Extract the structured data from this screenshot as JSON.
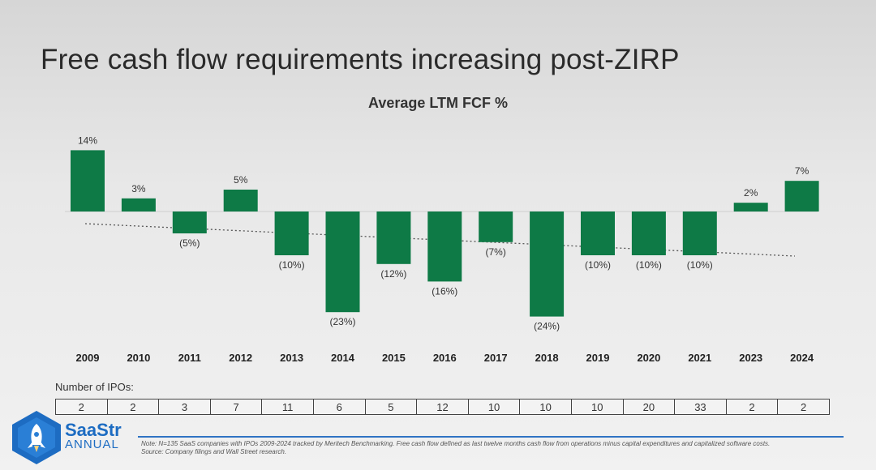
{
  "slide": {
    "title": "Free cash flow requirements increasing post-ZIRP"
  },
  "chart_data": {
    "type": "bar",
    "title": "Average LTM FCF %",
    "categories": [
      "2009",
      "2010",
      "2011",
      "2012",
      "2013",
      "2014",
      "2015",
      "2016",
      "2017",
      "2018",
      "2019",
      "2020",
      "2021",
      "2023",
      "2024"
    ],
    "values": [
      14,
      3,
      -5,
      5,
      -10,
      -23,
      -12,
      -16,
      -7,
      -24,
      -10,
      -10,
      -10,
      2,
      7
    ],
    "value_labels": [
      "14%",
      "3%",
      "(5%)",
      "5%",
      "(10%)",
      "(23%)",
      "(12%)",
      "(16%)",
      "(7%)",
      "(24%)",
      "(10%)",
      "(10%)",
      "(10%)",
      "2%",
      "7%"
    ],
    "ylim": [
      -25,
      15
    ],
    "trendline": "dotted, declining",
    "bar_color": "#0e7a46",
    "grid": false,
    "legend": "none"
  },
  "ipos": {
    "title": "Number of IPOs:",
    "values": [
      "2",
      "2",
      "3",
      "7",
      "11",
      "6",
      "5",
      "12",
      "10",
      "10",
      "10",
      "20",
      "33",
      "2",
      "2"
    ]
  },
  "logo": {
    "name": "SaaStr",
    "sub": "ANNUAL",
    "color": "#1d6cc2"
  },
  "footnote": {
    "note": "Note: N=135 SaaS companies with IPOs 2009-2024 tracked by Meritech Benchmarking. Free cash flow defined as last twelve months cash flow from operations minus capital expenditures and capitalized software costs.",
    "source": "Source: Company filings and Wall Street research."
  }
}
